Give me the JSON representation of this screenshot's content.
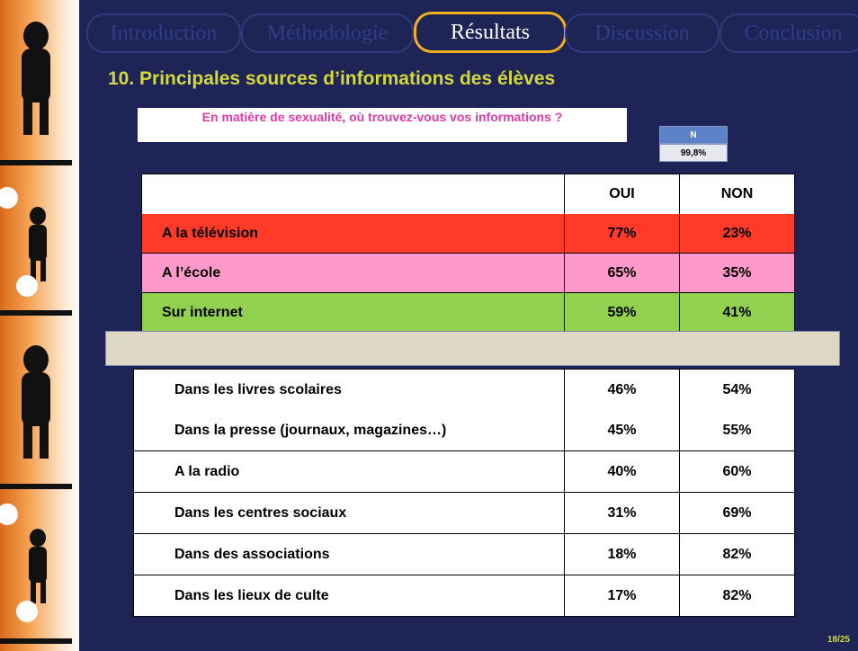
{
  "nav": {
    "tabs": [
      "Introduction",
      "Méthodologie",
      "Résultats",
      "Discussion",
      "Conclusion"
    ],
    "active": 2
  },
  "header": {
    "title": "10.  Principales sources d’informations des élèves"
  },
  "question": "En matière de sexualité, où trouvez-vous vos informations ?",
  "sample": {
    "label": "N",
    "value": "99,8%"
  },
  "table": {
    "header": [
      "OUI",
      "NON"
    ],
    "rows": [
      [
        "A la télévision",
        "77%",
        "23%"
      ],
      [
        "A l’école",
        "65%",
        "35%"
      ],
      [
        "Sur internet",
        "59%",
        "41%"
      ],
      [
        "Dans les livres scolaires",
        "46%",
        "54%"
      ],
      [
        "Dans la presse (journaux, magazines…)",
        "45%",
        "55%"
      ],
      [
        "A la radio",
        "40%",
        "60%"
      ],
      [
        "Dans les centres sociaux",
        "31%",
        "69%"
      ],
      [
        "Dans des associations",
        "18%",
        "82%"
      ],
      [
        "Dans les lieux de culte",
        "17%",
        "82%"
      ]
    ]
  },
  "footer": {
    "page": "18/25"
  }
}
